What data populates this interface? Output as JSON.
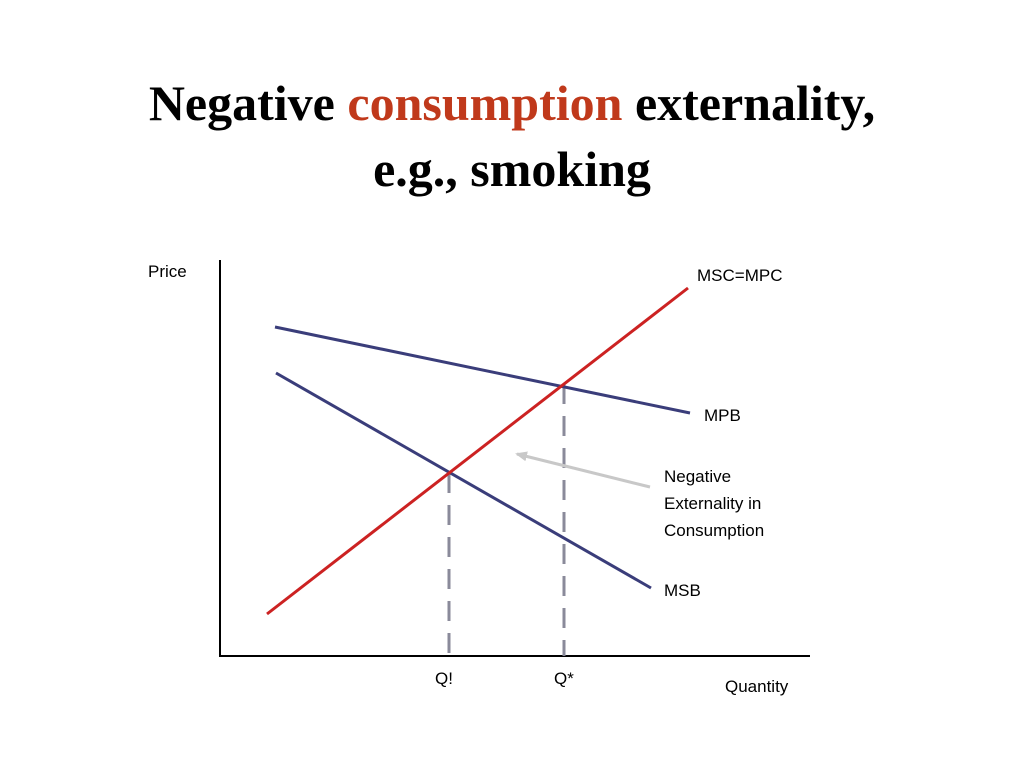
{
  "title": {
    "part1": "Negative",
    "part2": "consumption",
    "part3": "externality,",
    "line2": "e.g., smoking",
    "accent_color": "#c0391b"
  },
  "diagram": {
    "y_axis_label": "Price",
    "x_axis_label": "Quantity",
    "curves": {
      "msc": {
        "label": "MSC=MPC",
        "color": "#cc2222"
      },
      "mpb": {
        "label": "MPB",
        "color": "#3a3d7a"
      },
      "msb": {
        "label": "MSB",
        "color": "#3a3d7a"
      }
    },
    "q_ticks": {
      "q1": "Q!",
      "q_star": "Q*"
    },
    "annotation": {
      "line1": "Negative",
      "line2": "Externality in",
      "line3": "Consumption",
      "arrow_color": "#c8c8c8"
    },
    "axis_color": "#000000",
    "guide_color": "#8a8a9a"
  }
}
